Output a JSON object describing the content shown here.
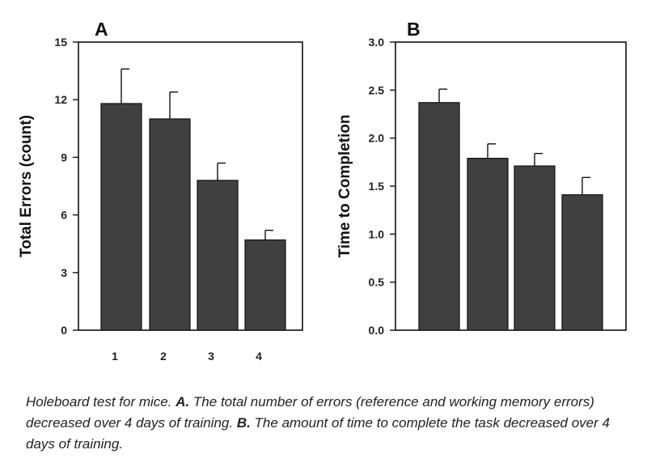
{
  "chart_data": [
    {
      "type": "bar",
      "panel_label": "A",
      "ylabel": "Total Errors (count)",
      "categories": [
        "1",
        "2",
        "3",
        "4"
      ],
      "values": [
        11.8,
        11.0,
        7.8,
        4.7
      ],
      "errors": [
        1.8,
        1.4,
        0.9,
        0.5
      ],
      "ylim": [
        0,
        15
      ],
      "yticks": [
        "0",
        "3",
        "6",
        "9",
        "12",
        "15"
      ],
      "bar_color": "#404040",
      "grid": false
    },
    {
      "type": "bar",
      "panel_label": "B",
      "ylabel": "Time to Completion",
      "categories": [
        "",
        "",
        "",
        ""
      ],
      "values": [
        2.37,
        1.79,
        1.71,
        1.41
      ],
      "errors": [
        0.14,
        0.15,
        0.13,
        0.18
      ],
      "ylim": [
        0,
        3.0
      ],
      "yticks": [
        "0.0",
        "0.5",
        "1.0",
        "1.5",
        "2.0",
        "2.5",
        "3.0"
      ],
      "bar_color": "#404040",
      "grid": false
    }
  ],
  "caption": {
    "intro": "Holeboard test for mice. ",
    "a_label": "A.",
    "a_text": " The total number of errors (reference and working memory errors) decreased over 4 days of training. ",
    "b_label": "B.",
    "b_text": " The amount of time to complete the task decreased  over 4 days of training."
  }
}
